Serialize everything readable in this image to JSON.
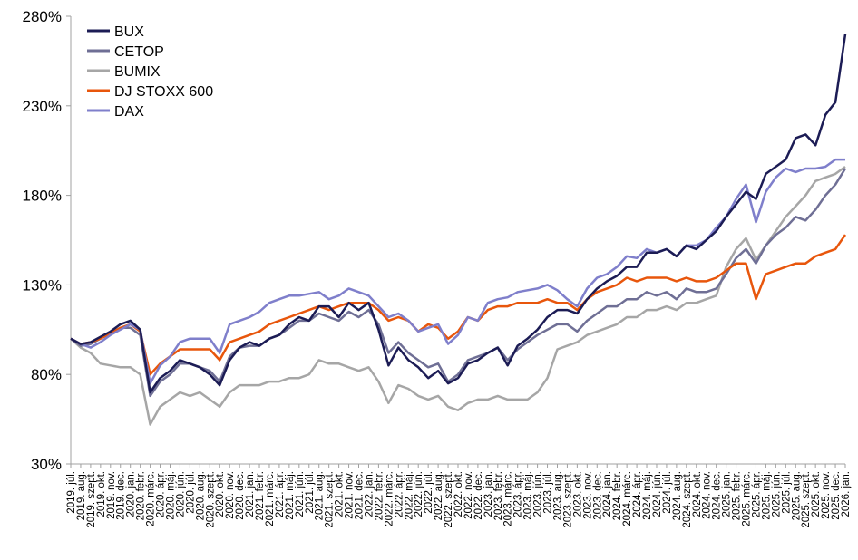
{
  "chart_data": {
    "type": "line",
    "title": "",
    "xlabel": "",
    "ylabel": "",
    "ylim": [
      30,
      280
    ],
    "yticks": [
      "30%",
      "80%",
      "130%",
      "180%",
      "230%",
      "280%"
    ],
    "ytick_values": [
      30,
      80,
      130,
      180,
      230,
      280
    ],
    "grid": false,
    "legend_position": "top-left",
    "categories": [
      "2019. júl.",
      "2019. aug.",
      "2019. szept.",
      "2019. okt.",
      "2019. nov.",
      "2019. dec.",
      "2020. jan.",
      "2020. febr.",
      "2020. márc.",
      "2020. ápr.",
      "2020. máj.",
      "2020. jún.",
      "2020. júl.",
      "2020. aug.",
      "2020. szept.",
      "2020. okt.",
      "2020. nov.",
      "2020. dec.",
      "2021. jan.",
      "2021. febr.",
      "2021. márc.",
      "2021. ápr.",
      "2021. máj.",
      "2021. jún.",
      "2021. júl.",
      "2021. aug.",
      "2021. szept.",
      "2021. okt.",
      "2021. nov.",
      "2021. dec.",
      "2022. jan.",
      "2022. febr.",
      "2022. márc.",
      "2022. ápr.",
      "2022. máj.",
      "2022. jún.",
      "2022. júl.",
      "2022. aug.",
      "2022. szept.",
      "2022. okt.",
      "2022. nov.",
      "2022. dec.",
      "2023. jan.",
      "2023. febr.",
      "2023. márc.",
      "2023. ápr.",
      "2023. máj.",
      "2023. jún.",
      "2023. júl.",
      "2023. aug.",
      "2023. szept.",
      "2023. okt.",
      "2023. nov.",
      "2023. dec.",
      "2024. jan.",
      "2024. febr.",
      "2024. márc.",
      "2024. ápr.",
      "2024. máj.",
      "2024. jún.",
      "2024. júl.",
      "2024. aug.",
      "2024. szept.",
      "2024. okt.",
      "2024. nov.",
      "2024. dec.",
      "2025. jan.",
      "2025. febr.",
      "2025. márc.",
      "2025. ápr.",
      "2025. máj.",
      "2025. jún.",
      "2025. júl.",
      "2025. aug.",
      "2025. szept.",
      "2025. okt.",
      "2025. nov.",
      "2025. dec.",
      "2026. jan."
    ],
    "series": [
      {
        "name": "BUMIX",
        "color": "#a6a6a6",
        "values": [
          100,
          95,
          92,
          86,
          85,
          84,
          84,
          80,
          52,
          62,
          66,
          70,
          68,
          70,
          66,
          62,
          70,
          74,
          74,
          74,
          76,
          76,
          78,
          78,
          80,
          88,
          86,
          86,
          84,
          82,
          84,
          76,
          64,
          74,
          72,
          68,
          66,
          68,
          62,
          60,
          64,
          66,
          66,
          68,
          66,
          66,
          66,
          70,
          78,
          94,
          96,
          98,
          102,
          104,
          106,
          108,
          112,
          112,
          116,
          116,
          118,
          116,
          120,
          120,
          122,
          124,
          140,
          150,
          156,
          144,
          152,
          160,
          168,
          174,
          180,
          188,
          190,
          192,
          196
        ]
      },
      {
        "name": "CETOP",
        "color": "#6f6f95",
        "values": [
          100,
          96,
          97,
          100,
          103,
          106,
          106,
          102,
          68,
          76,
          80,
          86,
          86,
          84,
          82,
          76,
          90,
          95,
          96,
          96,
          100,
          102,
          106,
          110,
          110,
          114,
          112,
          110,
          115,
          112,
          116,
          108,
          92,
          98,
          92,
          88,
          84,
          86,
          76,
          80,
          88,
          90,
          92,
          95,
          88,
          94,
          98,
          102,
          105,
          108,
          108,
          104,
          110,
          114,
          118,
          118,
          122,
          122,
          126,
          124,
          126,
          122,
          128,
          126,
          126,
          128,
          136,
          145,
          150,
          142,
          152,
          158,
          162,
          168,
          166,
          172,
          180,
          186,
          195
        ]
      },
      {
        "name": "DJ STOXX 600",
        "color": "#e8560c",
        "values": [
          100,
          97,
          98,
          100,
          103,
          106,
          108,
          104,
          80,
          86,
          90,
          94,
          94,
          94,
          94,
          88,
          98,
          100,
          102,
          104,
          108,
          110,
          112,
          114,
          116,
          118,
          116,
          118,
          120,
          120,
          120,
          116,
          110,
          112,
          110,
          104,
          108,
          106,
          100,
          104,
          112,
          110,
          116,
          118,
          118,
          120,
          120,
          120,
          122,
          120,
          120,
          116,
          122,
          126,
          128,
          130,
          134,
          132,
          134,
          134,
          134,
          132,
          134,
          132,
          132,
          134,
          138,
          142,
          142,
          122,
          136,
          138,
          140,
          142,
          142,
          146,
          148,
          150,
          158
        ]
      },
      {
        "name": "DAX",
        "color": "#7f7fcb",
        "values": [
          100,
          97,
          95,
          98,
          102,
          105,
          108,
          105,
          75,
          85,
          90,
          98,
          100,
          100,
          100,
          92,
          108,
          110,
          112,
          115,
          120,
          122,
          124,
          124,
          125,
          126,
          122,
          124,
          128,
          126,
          124,
          118,
          112,
          114,
          110,
          104,
          106,
          108,
          97,
          102,
          112,
          110,
          120,
          122,
          123,
          126,
          127,
          128,
          130,
          127,
          122,
          118,
          128,
          134,
          136,
          140,
          146,
          145,
          150,
          148,
          150,
          146,
          152,
          152,
          155,
          162,
          168,
          178,
          186,
          165,
          182,
          190,
          195,
          193,
          195,
          195,
          196,
          200,
          200
        ]
      },
      {
        "name": "BUX",
        "color": "#1c1c55",
        "values": [
          100,
          97,
          98,
          101,
          104,
          108,
          110,
          105,
          70,
          78,
          82,
          88,
          86,
          84,
          80,
          74,
          88,
          95,
          98,
          96,
          100,
          102,
          108,
          112,
          110,
          118,
          118,
          112,
          120,
          116,
          120,
          105,
          85,
          95,
          88,
          84,
          78,
          82,
          75,
          78,
          86,
          88,
          92,
          95,
          85,
          96,
          100,
          105,
          112,
          116,
          116,
          114,
          122,
          128,
          132,
          135,
          140,
          140,
          148,
          148,
          150,
          146,
          152,
          150,
          155,
          160,
          168,
          175,
          182,
          178,
          192,
          196,
          200,
          212,
          214,
          208,
          225,
          232,
          270
        ]
      }
    ],
    "legend": [
      "BUX",
      "CETOP",
      "BUMIX",
      "DJ STOXX 600",
      "DAX"
    ]
  }
}
